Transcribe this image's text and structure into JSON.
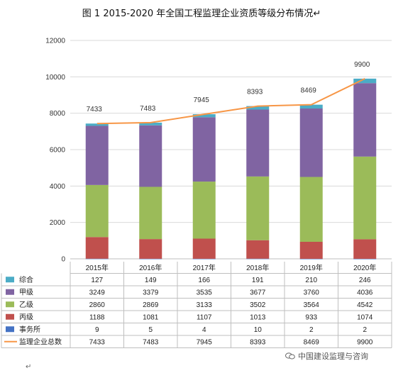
{
  "title": "图 1   2015-2020 年全国工程监理企业资质等级分布情况",
  "title_return_mark": "↵",
  "watermark": "中国建设监理与咨询",
  "bottom_return_mark": "↵",
  "chart_data": {
    "type": "bar",
    "stacked": true,
    "categories": [
      "2015年",
      "2016年",
      "2017年",
      "2018年",
      "2019年",
      "2020年"
    ],
    "series": [
      {
        "name": "事务所",
        "color": "#4472c4",
        "values": [
          9,
          5,
          4,
          10,
          2,
          2
        ]
      },
      {
        "name": "丙级",
        "color": "#c0504d",
        "values": [
          1188,
          1081,
          1107,
          1013,
          933,
          1074
        ]
      },
      {
        "name": "乙级",
        "color": "#9bbb59",
        "values": [
          2860,
          2869,
          3133,
          3502,
          3564,
          4542
        ]
      },
      {
        "name": "甲级",
        "color": "#8064a2",
        "values": [
          3249,
          3379,
          3535,
          3677,
          3760,
          4036
        ]
      },
      {
        "name": "综合",
        "color": "#4bacc6",
        "values": [
          127,
          149,
          166,
          191,
          210,
          246
        ]
      }
    ],
    "line": {
      "name": "监理企业总数",
      "color": "#f79646",
      "values": [
        7433,
        7483,
        7945,
        8393,
        8469,
        9900
      ]
    },
    "data_labels": [
      "7433",
      "7483",
      "7945",
      "8393",
      "8469",
      "9900"
    ],
    "table_rows": [
      "综合",
      "甲级",
      "乙级",
      "丙级",
      "事务所",
      "监理企业总数"
    ],
    "y_ticks": [
      "0",
      "2000",
      "4000",
      "6000",
      "8000",
      "10000",
      "12000"
    ],
    "ylim": [
      0,
      12000
    ],
    "grid": true,
    "legend": "data-table"
  }
}
